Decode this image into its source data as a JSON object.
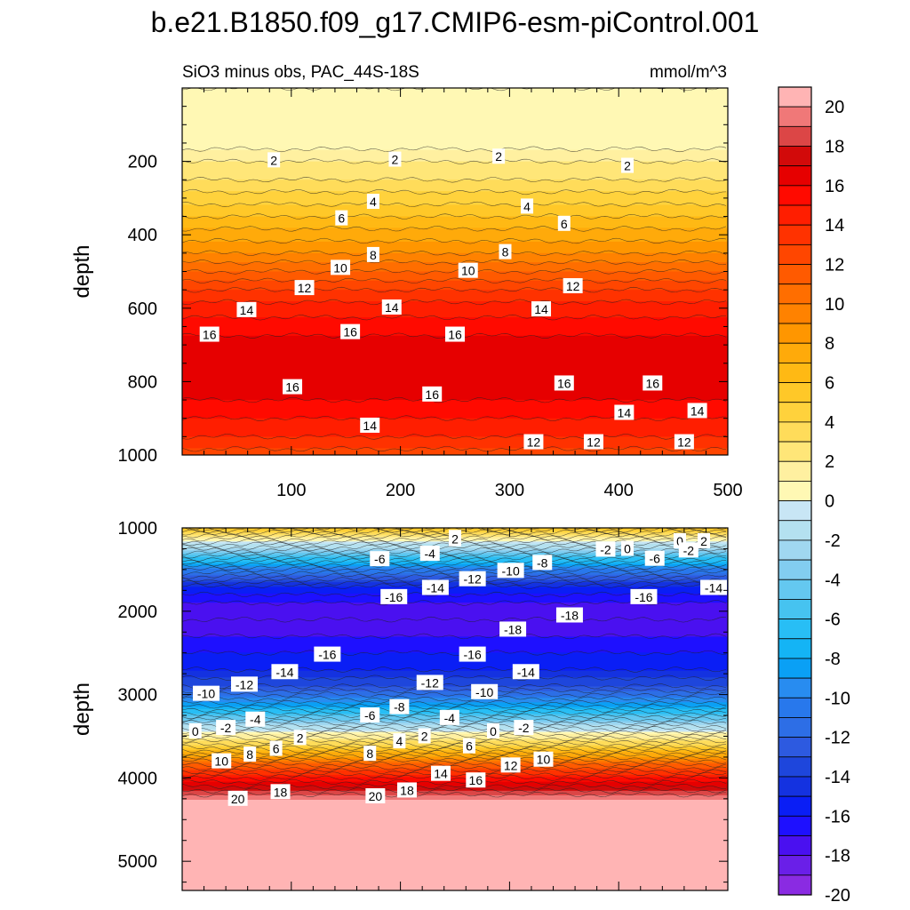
{
  "title": "b.e21.B1850.f09_g17.CMIP6-esm-piControl.001",
  "subtitle": "SiO3 minus obs, PAC_44S-18S",
  "units": "mmol/m^3",
  "colors": {
    "levels": [
      -20,
      -19,
      -18,
      -17,
      -16,
      -15,
      -14,
      -13,
      -12,
      -11,
      -10,
      -9,
      -8,
      -7,
      -6,
      -5,
      -4,
      -3,
      -2,
      -1,
      0,
      1,
      2,
      3,
      4,
      5,
      6,
      7,
      8,
      9,
      10,
      11,
      12,
      13,
      14,
      15,
      16,
      17,
      18,
      19,
      20
    ],
    "fills": [
      "#8a2be2",
      "#6a1fe8",
      "#4a10f0",
      "#1e10ff",
      "#0a1ef5",
      "#1432e0",
      "#1e46dc",
      "#2d5ae0",
      "#2d6ee6",
      "#2878ec",
      "#288cf0",
      "#0aa0f5",
      "#14b4f5",
      "#28bef5",
      "#46c3f0",
      "#64c8f0",
      "#82cdf0",
      "#a0d7f0",
      "#b4e1f0",
      "#c8e6f5",
      "#fff8b4",
      "#fff0a0",
      "#ffe678",
      "#ffdc5a",
      "#ffd23c",
      "#ffc828",
      "#ffb914",
      "#ffaa0a",
      "#ff9600",
      "#ff8200",
      "#ff6e00",
      "#ff5a00",
      "#ff4600",
      "#ff3200",
      "#ff1e00",
      "#ff0a00",
      "#e60000",
      "#d20a0a",
      "#dc4646",
      "#f07878",
      "#ffb4b4"
    ]
  },
  "colorbar": {
    "tick_labels": [
      "20",
      "18",
      "16",
      "14",
      "12",
      "10",
      "8",
      "6",
      "4",
      "2",
      "0",
      "-2",
      "-4",
      "-6",
      "-8",
      "-10",
      "-12",
      "-14",
      "-16",
      "-18",
      "-20"
    ]
  },
  "chart_data": [
    {
      "type": "heatmap",
      "panel": "top",
      "xlabel": "",
      "ylabel": "depth",
      "xlim": [
        0,
        500
      ],
      "ylim": [
        1000,
        0
      ],
      "x_ticks": [
        "100",
        "200",
        "300",
        "400",
        "500"
      ],
      "y_ticks": [
        "200",
        "400",
        "600",
        "800",
        "1000"
      ],
      "profile_depth": [
        0,
        150,
        200,
        250,
        300,
        350,
        400,
        450,
        500,
        550,
        600,
        650,
        700,
        800,
        850,
        900,
        950,
        1000
      ],
      "profile_value": [
        0,
        0.5,
        2,
        3,
        4.5,
        6,
        7.5,
        9,
        11,
        13,
        14.5,
        15.5,
        16.5,
        16.5,
        16,
        15,
        14,
        12.5
      ],
      "contour_labels": [
        {
          "x": 84,
          "d": 197,
          "v": "2"
        },
        {
          "x": 195,
          "d": 195,
          "v": "2"
        },
        {
          "x": 290,
          "d": 187,
          "v": "2"
        },
        {
          "x": 408,
          "d": 212,
          "v": "2"
        },
        {
          "x": 175,
          "d": 310,
          "v": "4"
        },
        {
          "x": 316,
          "d": 323,
          "v": "4"
        },
        {
          "x": 146,
          "d": 355,
          "v": "6"
        },
        {
          "x": 350,
          "d": 370,
          "v": "6"
        },
        {
          "x": 175,
          "d": 455,
          "v": "8"
        },
        {
          "x": 296,
          "d": 447,
          "v": "8"
        },
        {
          "x": 145,
          "d": 490,
          "v": "10"
        },
        {
          "x": 262,
          "d": 498,
          "v": "10"
        },
        {
          "x": 112,
          "d": 545,
          "v": "12"
        },
        {
          "x": 358,
          "d": 540,
          "v": "12"
        },
        {
          "x": 59,
          "d": 605,
          "v": "14"
        },
        {
          "x": 192,
          "d": 598,
          "v": "14"
        },
        {
          "x": 329,
          "d": 603,
          "v": "14"
        },
        {
          "x": 25,
          "d": 672,
          "v": "16"
        },
        {
          "x": 154,
          "d": 665,
          "v": "16"
        },
        {
          "x": 250,
          "d": 672,
          "v": "16"
        },
        {
          "x": 101,
          "d": 815,
          "v": "16"
        },
        {
          "x": 229,
          "d": 835,
          "v": "16"
        },
        {
          "x": 350,
          "d": 805,
          "v": "16"
        },
        {
          "x": 431,
          "d": 805,
          "v": "16"
        },
        {
          "x": 172,
          "d": 920,
          "v": "14"
        },
        {
          "x": 405,
          "d": 885,
          "v": "14"
        },
        {
          "x": 472,
          "d": 880,
          "v": "14"
        },
        {
          "x": 322,
          "d": 965,
          "v": "12"
        },
        {
          "x": 377,
          "d": 965,
          "v": "12"
        },
        {
          "x": 460,
          "d": 965,
          "v": "12"
        }
      ]
    },
    {
      "type": "heatmap",
      "panel": "bottom",
      "xlabel": "",
      "ylabel": "depth",
      "xlim": [
        0,
        500
      ],
      "ylim": [
        5350,
        1000
      ],
      "x_ticks": [],
      "y_ticks": [
        "1000",
        "2000",
        "3000",
        "4000",
        "5000"
      ],
      "profile_depth": [
        1000,
        1100,
        1300,
        1500,
        1700,
        1900,
        2100,
        2300,
        2500,
        2700,
        2900,
        3100,
        3300,
        3450,
        3600,
        3800,
        4000,
        4150,
        4250,
        4350,
        5350
      ],
      "profile_value": [
        6,
        2,
        -4,
        -10,
        -15,
        -17,
        -18,
        -17,
        -16,
        -15,
        -13,
        -9,
        -4,
        0,
        4,
        10,
        15,
        18,
        20,
        20,
        20
      ],
      "contour_labels": [
        {
          "x": 250,
          "d": 1120,
          "v": "4"
        },
        {
          "x": 250,
          "d": 1135,
          "v": "2"
        },
        {
          "x": 456,
          "d": 1160,
          "v": "0"
        },
        {
          "x": 478,
          "d": 1160,
          "v": "2"
        },
        {
          "x": 388,
          "d": 1260,
          "v": "-2"
        },
        {
          "x": 408,
          "d": 1250,
          "v": "0"
        },
        {
          "x": 433,
          "d": 1370,
          "v": "-6"
        },
        {
          "x": 464,
          "d": 1270,
          "v": "-2"
        },
        {
          "x": 181,
          "d": 1375,
          "v": "-6"
        },
        {
          "x": 227,
          "d": 1310,
          "v": "-4"
        },
        {
          "x": 330,
          "d": 1420,
          "v": "-8"
        },
        {
          "x": 301,
          "d": 1515,
          "v": "-10"
        },
        {
          "x": 266,
          "d": 1615,
          "v": "-12"
        },
        {
          "x": 232,
          "d": 1720,
          "v": "-14"
        },
        {
          "x": 487,
          "d": 1720,
          "v": "-14"
        },
        {
          "x": 194,
          "d": 1830,
          "v": "-16"
        },
        {
          "x": 423,
          "d": 1830,
          "v": "-16"
        },
        {
          "x": 355,
          "d": 2050,
          "v": "-18"
        },
        {
          "x": 303,
          "d": 2220,
          "v": "-18"
        },
        {
          "x": 133,
          "d": 2520,
          "v": "-16"
        },
        {
          "x": 266,
          "d": 2520,
          "v": "-16"
        },
        {
          "x": 94,
          "d": 2730,
          "v": "-14"
        },
        {
          "x": 315,
          "d": 2730,
          "v": "-14"
        },
        {
          "x": 57,
          "d": 2880,
          "v": "-12"
        },
        {
          "x": 227,
          "d": 2860,
          "v": "-12"
        },
        {
          "x": 22,
          "d": 2990,
          "v": "-10"
        },
        {
          "x": 277,
          "d": 2970,
          "v": "-10"
        },
        {
          "x": 199,
          "d": 3150,
          "v": "-8"
        },
        {
          "x": 172,
          "d": 3250,
          "v": "-6"
        },
        {
          "x": 245,
          "d": 3280,
          "v": "-4"
        },
        {
          "x": 67,
          "d": 3300,
          "v": "-4"
        },
        {
          "x": 40,
          "d": 3400,
          "v": "-2"
        },
        {
          "x": 313,
          "d": 3400,
          "v": "-2"
        },
        {
          "x": 12,
          "d": 3440,
          "v": "0"
        },
        {
          "x": 285,
          "d": 3440,
          "v": "0"
        },
        {
          "x": 108,
          "d": 3520,
          "v": "2"
        },
        {
          "x": 222,
          "d": 3500,
          "v": "2"
        },
        {
          "x": 199,
          "d": 3560,
          "v": "4"
        },
        {
          "x": 86,
          "d": 3650,
          "v": "6"
        },
        {
          "x": 263,
          "d": 3620,
          "v": "6"
        },
        {
          "x": 62,
          "d": 3720,
          "v": "8"
        },
        {
          "x": 172,
          "d": 3710,
          "v": "8"
        },
        {
          "x": 36,
          "d": 3800,
          "v": "10"
        },
        {
          "x": 331,
          "d": 3780,
          "v": "10"
        },
        {
          "x": 301,
          "d": 3850,
          "v": "12"
        },
        {
          "x": 237,
          "d": 3950,
          "v": "14"
        },
        {
          "x": 269,
          "d": 4030,
          "v": "16"
        },
        {
          "x": 90,
          "d": 4170,
          "v": "18"
        },
        {
          "x": 206,
          "d": 4150,
          "v": "18"
        },
        {
          "x": 51,
          "d": 4250,
          "v": "20"
        },
        {
          "x": 177,
          "d": 4220,
          "v": "20"
        }
      ]
    }
  ]
}
